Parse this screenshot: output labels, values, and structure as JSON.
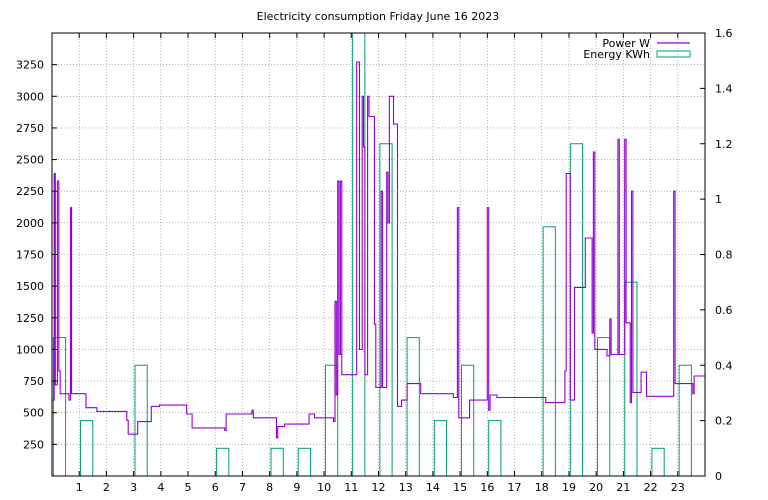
{
  "chart_data": {
    "type": "line",
    "title": "Electricity consumption Friday June 16 2023",
    "x_ticks": [
      "1",
      "2",
      "3",
      "4",
      "5",
      "6",
      "7",
      "8",
      "9",
      "10",
      "11",
      "12",
      "13",
      "14",
      "15",
      "16",
      "17",
      "18",
      "19",
      "20",
      "21",
      "22",
      "23"
    ],
    "xlim": [
      0,
      24
    ],
    "y_left": {
      "range": [
        0,
        3500
      ],
      "ticks": [
        "250",
        "500",
        "750",
        "1000",
        "1250",
        "1500",
        "1750",
        "2000",
        "2250",
        "2500",
        "2750",
        "3000",
        "3250"
      ]
    },
    "y_right": {
      "range": [
        0,
        1.6
      ],
      "ticks": [
        "0",
        "0.2",
        "0.4",
        "0.6",
        "0.8",
        "1",
        "1.2",
        "1.4",
        "1.6"
      ]
    },
    "grid": true,
    "legend_position": "top-right",
    "series": [
      {
        "name": "Power W",
        "axis": "left",
        "color": "#9400d3",
        "style": "step",
        "points": [
          [
            0,
            600
          ],
          [
            0.05,
            600
          ],
          [
            0.08,
            2390
          ],
          [
            0.12,
            720
          ],
          [
            0.2,
            2330
          ],
          [
            0.25,
            830
          ],
          [
            0.3,
            650
          ],
          [
            0.6,
            650
          ],
          [
            0.62,
            600
          ],
          [
            0.68,
            2120
          ],
          [
            0.72,
            650
          ],
          [
            1.2,
            650
          ],
          [
            1.25,
            540
          ],
          [
            1.6,
            540
          ],
          [
            1.65,
            510
          ],
          [
            2.7,
            510
          ],
          [
            2.75,
            440
          ],
          [
            2.8,
            330
          ],
          [
            3.1,
            330
          ],
          [
            3.15,
            430
          ],
          [
            3.6,
            430
          ],
          [
            3.65,
            550
          ],
          [
            3.9,
            550
          ],
          [
            3.95,
            560
          ],
          [
            4.9,
            560
          ],
          [
            4.95,
            490
          ],
          [
            5.1,
            490
          ],
          [
            5.15,
            380
          ],
          [
            6.3,
            380
          ],
          [
            6.35,
            360
          ],
          [
            6.4,
            490
          ],
          [
            7.3,
            490
          ],
          [
            7.35,
            520
          ],
          [
            7.4,
            460
          ],
          [
            8.2,
            460
          ],
          [
            8.25,
            300
          ],
          [
            8.3,
            390
          ],
          [
            8.5,
            390
          ],
          [
            8.55,
            410
          ],
          [
            9.4,
            410
          ],
          [
            9.45,
            490
          ],
          [
            9.6,
            490
          ],
          [
            9.65,
            460
          ],
          [
            10.3,
            460
          ],
          [
            10.35,
            430
          ],
          [
            10.4,
            1380
          ],
          [
            10.45,
            640
          ],
          [
            10.5,
            2330
          ],
          [
            10.55,
            960
          ],
          [
            10.6,
            2330
          ],
          [
            10.65,
            800
          ],
          [
            10.7,
            800
          ],
          [
            11.2,
            3270
          ],
          [
            11.3,
            1000
          ],
          [
            11.4,
            3000
          ],
          [
            11.45,
            2600
          ],
          [
            11.5,
            800
          ],
          [
            11.6,
            3000
          ],
          [
            11.65,
            2840
          ],
          [
            11.8,
            2840
          ],
          [
            11.85,
            1200
          ],
          [
            11.9,
            700
          ],
          [
            12.0,
            700
          ],
          [
            12.1,
            2250
          ],
          [
            12.15,
            700
          ],
          [
            12.3,
            2400
          ],
          [
            12.35,
            2000
          ],
          [
            12.4,
            3000
          ],
          [
            12.5,
            3000
          ],
          [
            12.55,
            2780
          ],
          [
            12.65,
            2780
          ],
          [
            12.7,
            550
          ],
          [
            12.8,
            550
          ],
          [
            12.85,
            600
          ],
          [
            13.0,
            600
          ],
          [
            13.05,
            730
          ],
          [
            13.5,
            730
          ],
          [
            13.55,
            650
          ],
          [
            14.7,
            650
          ],
          [
            14.75,
            620
          ],
          [
            14.85,
            620
          ],
          [
            14.9,
            2120
          ],
          [
            14.95,
            460
          ],
          [
            15.3,
            460
          ],
          [
            15.35,
            600
          ],
          [
            15.95,
            600
          ],
          [
            16.0,
            2120
          ],
          [
            16.05,
            520
          ],
          [
            16.1,
            640
          ],
          [
            16.3,
            640
          ],
          [
            16.35,
            620
          ],
          [
            18.1,
            620
          ],
          [
            18.15,
            580
          ],
          [
            18.8,
            580
          ],
          [
            18.85,
            830
          ],
          [
            18.9,
            2390
          ],
          [
            19.0,
            2390
          ],
          [
            19.05,
            600
          ],
          [
            19.15,
            600
          ],
          [
            19.2,
            1490
          ],
          [
            19.55,
            1490
          ],
          [
            19.6,
            1880
          ],
          [
            19.8,
            1880
          ],
          [
            19.85,
            1130
          ],
          [
            19.9,
            2560
          ],
          [
            19.95,
            1000
          ],
          [
            20.35,
            1000
          ],
          [
            20.4,
            950
          ],
          [
            20.5,
            1240
          ],
          [
            20.55,
            960
          ],
          [
            20.8,
            2660
          ],
          [
            20.85,
            960
          ],
          [
            21.05,
            2660
          ],
          [
            21.1,
            1210
          ],
          [
            21.2,
            1210
          ],
          [
            21.25,
            580
          ],
          [
            21.3,
            2250
          ],
          [
            21.35,
            660
          ],
          [
            21.6,
            660
          ],
          [
            21.65,
            820
          ],
          [
            21.8,
            820
          ],
          [
            21.85,
            630
          ],
          [
            22.8,
            630
          ],
          [
            22.85,
            2250
          ],
          [
            22.9,
            730
          ],
          [
            23.5,
            730
          ],
          [
            23.55,
            650
          ],
          [
            23.6,
            790
          ],
          [
            24,
            790
          ]
        ]
      },
      {
        "name": "Energy KWh",
        "axis": "right",
        "color": "#009e73",
        "style": "hour-bars",
        "values": [
          0.5,
          0.2,
          0,
          0.4,
          0,
          0,
          0.1,
          0,
          0.1,
          0.1,
          0.4,
          1.6,
          1.2,
          0.5,
          0.2,
          0.4,
          0.2,
          0,
          0.9,
          1.2,
          0.5,
          0.7,
          0.1,
          0.4
        ]
      }
    ]
  }
}
